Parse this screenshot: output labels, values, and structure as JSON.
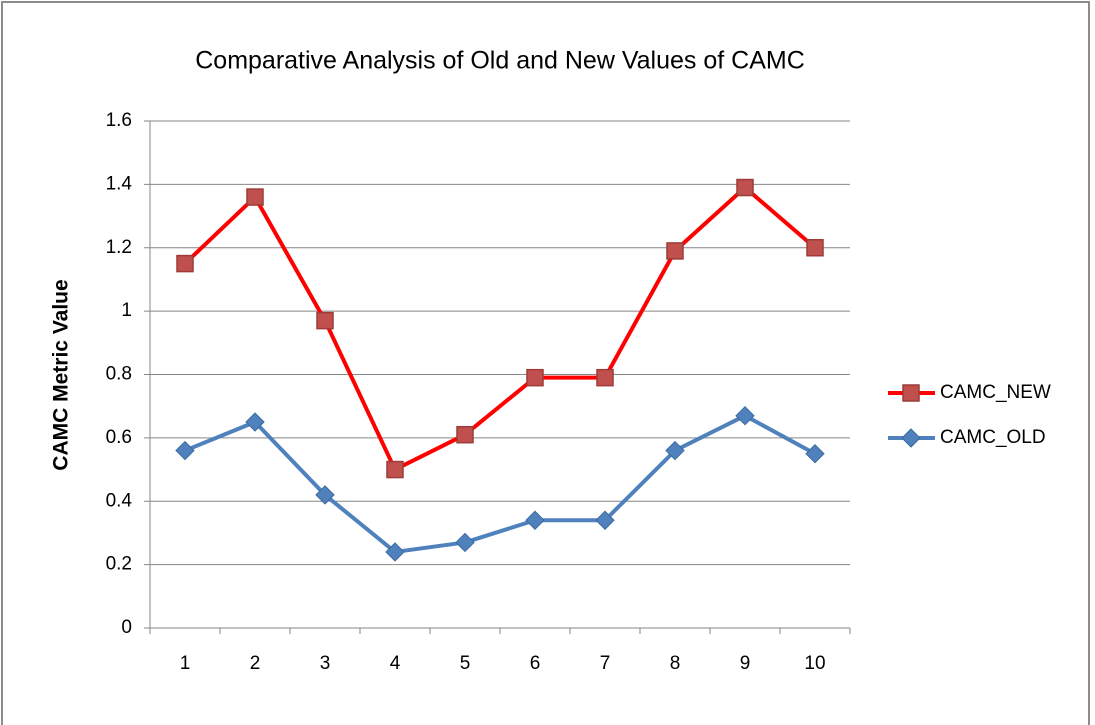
{
  "chart_data": {
    "type": "line",
    "title": "Comparative Analysis of Old and New Values of CAMC",
    "y_label": "CAMC Metric Value",
    "categories": [
      "1",
      "2",
      "3",
      "4",
      "5",
      "6",
      "7",
      "8",
      "9",
      "10"
    ],
    "series": [
      {
        "name": "CAMC_NEW",
        "color": "#ff0000",
        "marker": "square",
        "marker_color": "#c0504d",
        "values": [
          1.15,
          1.36,
          0.97,
          0.5,
          0.61,
          0.79,
          0.79,
          1.19,
          1.39,
          1.2
        ]
      },
      {
        "name": "CAMC_OLD",
        "color": "#4f81bd",
        "marker": "diamond",
        "marker_color": "#4f81bd",
        "values": [
          0.56,
          0.65,
          0.42,
          0.24,
          0.27,
          0.34,
          0.34,
          0.56,
          0.67,
          0.55
        ]
      }
    ],
    "ylim": [
      0,
      1.6
    ],
    "yticks": [
      0,
      0.2,
      0.4,
      0.6,
      0.8,
      1,
      1.2,
      1.4,
      1.6
    ],
    "grid": true,
    "legend": "right"
  }
}
